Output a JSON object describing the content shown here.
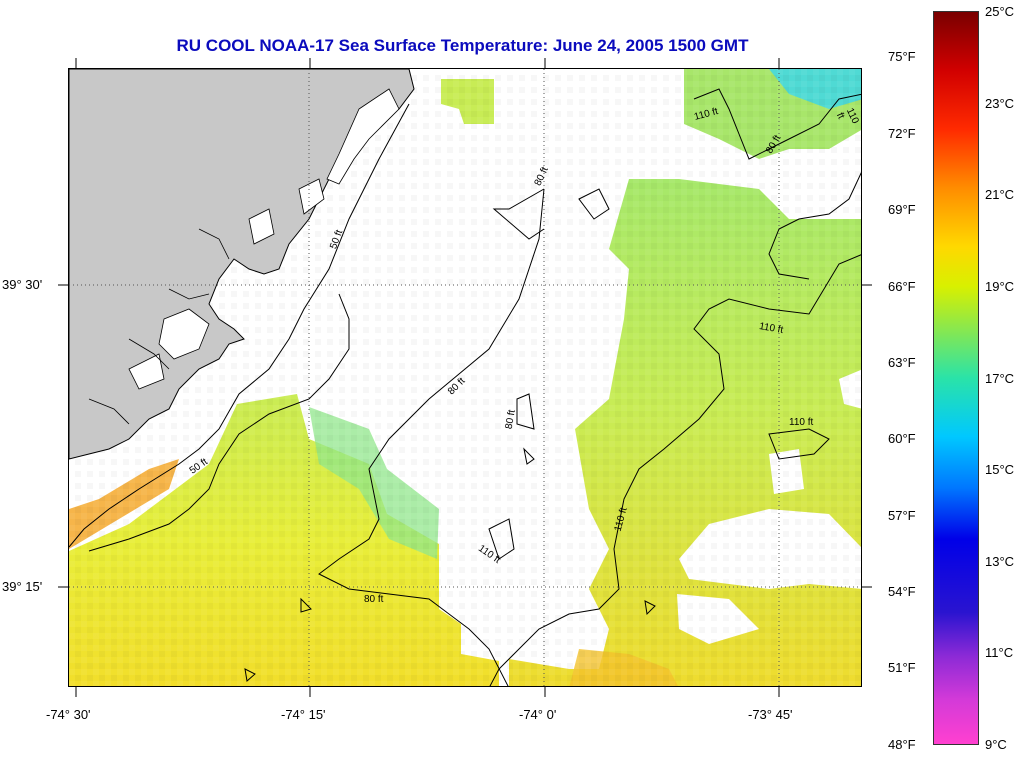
{
  "title": "RU COOL  NOAA-17  Sea Surface Temperature:  June 24, 2005 1500 GMT",
  "axes": {
    "latitude_labels": [
      "39° 30'",
      "39° 15'"
    ],
    "longitude_labels": [
      "-74° 30'",
      "-74° 15'",
      "-74° 0'",
      "-73° 45'"
    ]
  },
  "contours": {
    "depth_labels": [
      "50 ft",
      "50 ft",
      "80 ft",
      "80 ft",
      "80 ft",
      "80 ft",
      "80 ft",
      "110 ft",
      "110 ft",
      "110 ft",
      "110 ft",
      "110 ft",
      "110 ft"
    ]
  },
  "colorbar": {
    "fahrenheit_labels": [
      "75°F",
      "72°F",
      "69°F",
      "66°F",
      "63°F",
      "60°F",
      "57°F",
      "54°F",
      "51°F",
      "48°F"
    ],
    "celsius_labels": [
      "25°C",
      "23°C",
      "21°C",
      "19°C",
      "17°C",
      "15°C",
      "13°C",
      "11°C",
      "9°C"
    ],
    "range_celsius": [
      9,
      25
    ]
  },
  "colors": {
    "title": "#0b0bbd",
    "land": "#c8c8c8",
    "no_data": "#ffffff",
    "contour": "#000000"
  }
}
